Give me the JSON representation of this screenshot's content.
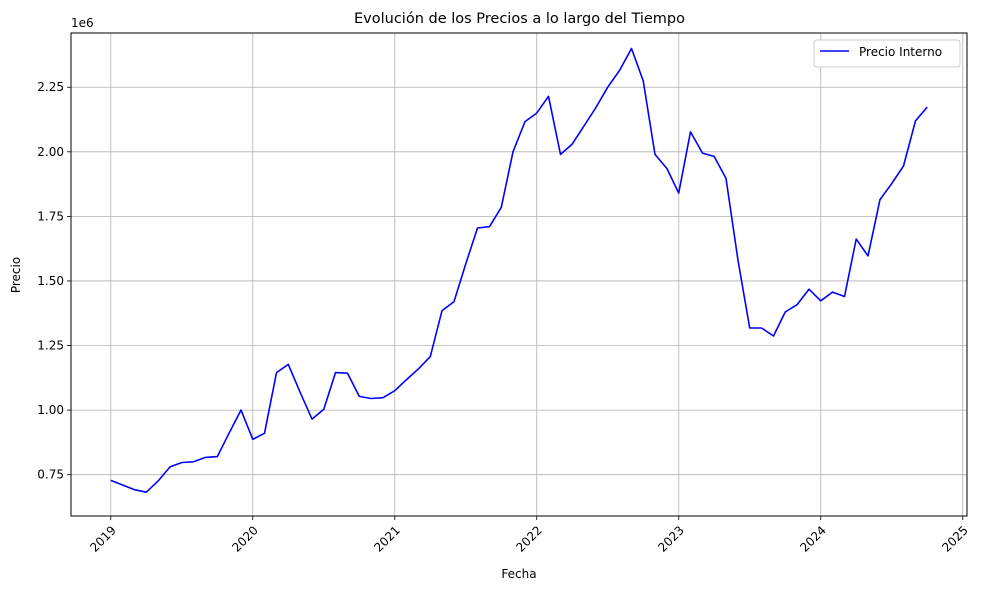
{
  "chart_data": {
    "type": "line",
    "title": "Evolución de los Precios a lo largo del Tiempo",
    "xlabel": "Fecha",
    "ylabel": "Precio",
    "y_offset_label": "1e6",
    "y_unit_scale": 1000000,
    "grid": true,
    "legend_position": "top-right",
    "xlim": [
      2018.72,
      2025.03
    ],
    "ylim": [
      590000,
      2460000
    ],
    "x_ticks": [
      2019,
      2020,
      2021,
      2022,
      2023,
      2024,
      2025
    ],
    "x_tick_labels": [
      "2019",
      "2020",
      "2021",
      "2022",
      "2023",
      "2024",
      "2025"
    ],
    "y_ticks": [
      750000,
      1000000,
      1250000,
      1500000,
      1750000,
      2000000,
      2250000
    ],
    "y_tick_labels": [
      "0.75",
      "1.00",
      "1.25",
      "1.50",
      "1.75",
      "2.00",
      "2.25"
    ],
    "series": [
      {
        "name": "Precio Interno",
        "color": "#0000ff",
        "x": [
          2019.0,
          2019.083,
          2019.167,
          2019.25,
          2019.333,
          2019.417,
          2019.5,
          2019.583,
          2019.667,
          2019.75,
          2019.833,
          2019.917,
          2020.0,
          2020.083,
          2020.167,
          2020.25,
          2020.333,
          2020.417,
          2020.5,
          2020.583,
          2020.667,
          2020.75,
          2020.833,
          2020.917,
          2021.0,
          2021.083,
          2021.167,
          2021.25,
          2021.333,
          2021.417,
          2021.5,
          2021.583,
          2021.667,
          2021.75,
          2021.833,
          2021.917,
          2022.0,
          2022.083,
          2022.167,
          2022.25,
          2022.333,
          2022.417,
          2022.5,
          2022.583,
          2022.667,
          2022.75,
          2022.833,
          2022.917,
          2023.0,
          2023.083,
          2023.167,
          2023.25,
          2023.333,
          2023.417,
          2023.5,
          2023.583,
          2023.667,
          2023.75,
          2023.833,
          2023.917,
          2024.0,
          2024.083,
          2024.167,
          2024.25,
          2024.333,
          2024.417,
          2024.5,
          2024.583,
          2024.667,
          2024.75
        ],
        "y": [
          728000,
          710000,
          692000,
          682000,
          725000,
          780000,
          797000,
          800000,
          817000,
          820000,
          910000,
          1000000,
          887000,
          910000,
          1145000,
          1177000,
          1070000,
          965000,
          1003000,
          1145000,
          1143000,
          1053000,
          1045000,
          1048000,
          1075000,
          1118000,
          1160000,
          1207000,
          1385000,
          1420000,
          1567000,
          1705000,
          1710000,
          1785000,
          2000000,
          2117000,
          2150000,
          2215000,
          1990000,
          2030000,
          2100000,
          2172000,
          2250000,
          2315000,
          2400000,
          2275000,
          1990000,
          1935000,
          1840000,
          2077000,
          1995000,
          1982000,
          1897000,
          1580000,
          1318000,
          1318000,
          1287000,
          1380000,
          1408000,
          1468000,
          1423000,
          1457000,
          1440000,
          1662000,
          1597000,
          1815000,
          1877000,
          1945000,
          2120000,
          2173000
        ]
      }
    ]
  }
}
